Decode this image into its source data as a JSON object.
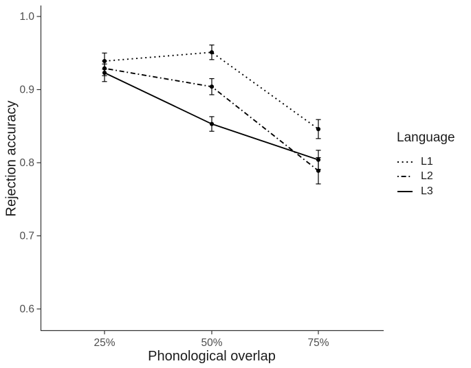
{
  "figure": {
    "background": "#ffffff"
  },
  "chart_data": {
    "type": "line",
    "title": "",
    "xlabel": "Phonological overlap",
    "ylabel": "Rejection accuracy",
    "categories": [
      "25%",
      "50%",
      "75%"
    ],
    "y_ticks": [
      "1.0",
      "0.9",
      "0.8",
      "0.7",
      "0.6"
    ],
    "ylim": [
      0.6,
      1.0
    ],
    "grid": false,
    "error_bars": true,
    "point_marker": "filled-circle",
    "legend": {
      "title": "Language",
      "position": "right"
    },
    "series": [
      {
        "name": "L1",
        "linetype": "dotted",
        "values": [
          0.939,
          0.951,
          0.846
        ],
        "errors": [
          0.011,
          0.01,
          0.013
        ]
      },
      {
        "name": "L2",
        "linetype": "dotdash",
        "values": [
          0.929,
          0.904,
          0.789
        ],
        "errors": [
          0.01,
          0.011,
          0.018
        ]
      },
      {
        "name": "L3",
        "linetype": "solid",
        "values": [
          0.923,
          0.853,
          0.804
        ],
        "errors": [
          0.012,
          0.01,
          0.013
        ]
      }
    ],
    "colors": {
      "data": "#000000",
      "axis_line": "#333333",
      "axis_text": "#4d4d4d",
      "title_text": "#1a1a1a"
    }
  }
}
